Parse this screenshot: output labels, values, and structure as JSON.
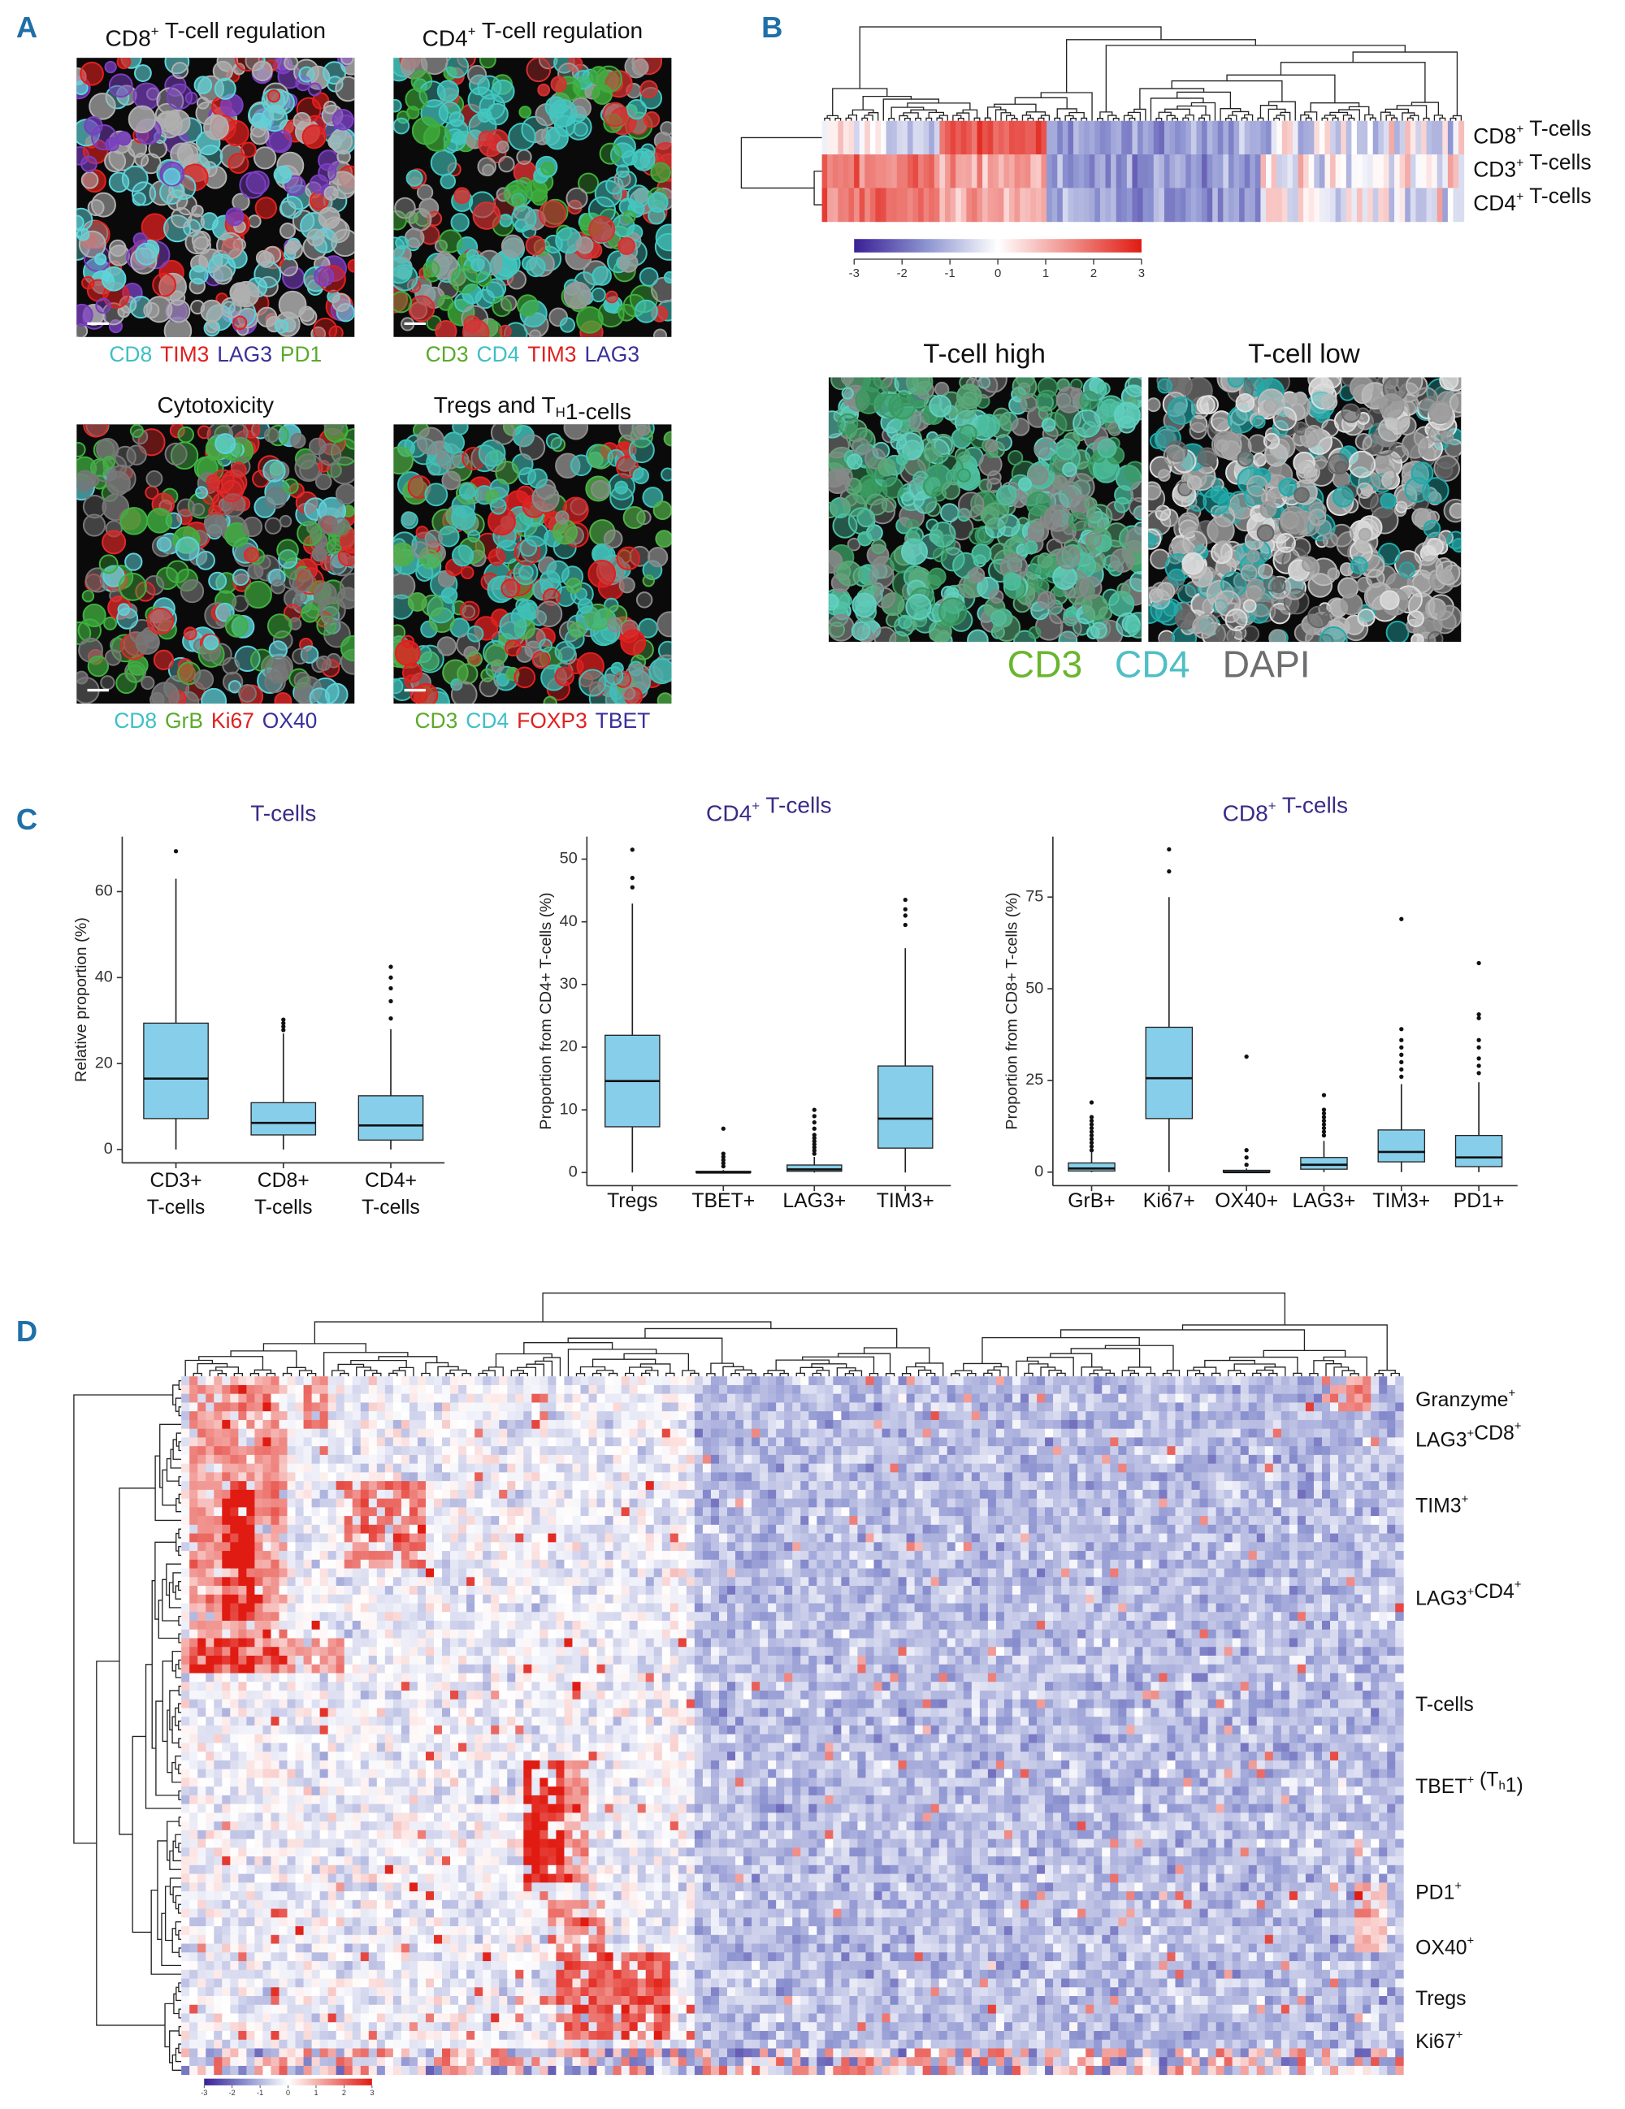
{
  "panel_a": {
    "label": "A",
    "images": [
      {
        "title": [
          "CD8",
          {
            "sup": "+"
          },
          " T-cell regulation"
        ],
        "markers": [
          {
            "text": "CD8",
            "color": "#3fbfc6"
          },
          {
            "text": "TIM3",
            "color": "#e0201e"
          },
          {
            "text": "LAG3",
            "color": "#3a2f9a"
          },
          {
            "text": "PD1",
            "color": "#5aaa2a"
          }
        ]
      },
      {
        "title": [
          "CD4",
          {
            "sup": "+"
          },
          " T-cell regulation"
        ],
        "markers": [
          {
            "text": "CD3",
            "color": "#5aaa2a"
          },
          {
            "text": "CD4",
            "color": "#3fbfc6"
          },
          {
            "text": "TIM3",
            "color": "#e0201e"
          },
          {
            "text": "LAG3",
            "color": "#3a2f9a"
          }
        ]
      },
      {
        "title": [
          "Cytotoxicity"
        ],
        "markers": [
          {
            "text": "CD8",
            "color": "#3fbfc6"
          },
          {
            "text": "GrB",
            "color": "#5aaa2a"
          },
          {
            "text": "Ki67",
            "color": "#e0201e"
          },
          {
            "text": "OX40",
            "color": "#3a2f9a"
          }
        ]
      },
      {
        "title": [
          "Tregs and T",
          {
            "sub": "H"
          },
          "1-cells"
        ],
        "markers": [
          {
            "text": "CD3",
            "color": "#5aaa2a"
          },
          {
            "text": "CD4",
            "color": "#3fbfc6"
          },
          {
            "text": "FOXP3",
            "color": "#e0201e"
          },
          {
            "text": "TBET",
            "color": "#3a2f9a"
          }
        ]
      }
    ]
  },
  "panel_b": {
    "label": "B",
    "heatmap_rows": [
      [
        "CD8",
        {
          "sup": "+"
        },
        " T-cells"
      ],
      [
        "CD3",
        {
          "sup": "+"
        },
        " T-cells"
      ],
      [
        "CD4",
        {
          "sup": "+"
        },
        " T-cells"
      ]
    ],
    "scale_ticks": [
      -3,
      -2,
      -1,
      0,
      1,
      2,
      3
    ],
    "images": [
      {
        "title": "T-cell high"
      },
      {
        "title": "T-cell low"
      }
    ],
    "legend": [
      {
        "text": "CD3",
        "color": "#6ab52e"
      },
      {
        "text": "CD4",
        "color": "#4fbfc4"
      },
      {
        "text": "DAPI",
        "color": "#6d6e70"
      }
    ]
  },
  "panel_c_label": "C",
  "chart_data": [
    {
      "type": "boxplot",
      "title": [
        "T-cells"
      ],
      "y_label": "Relative proportion (%)",
      "categories": [
        [
          "CD3+",
          "T-cells"
        ],
        [
          "CD8+",
          "T-cells"
        ],
        [
          "CD4+",
          "T-cells"
        ]
      ],
      "color": "#87ceeb",
      "ylim": [
        -3.1,
        72.8
      ],
      "yticks": [
        0,
        20,
        40,
        60
      ],
      "boxes": [
        {
          "min": 0,
          "q1": 7.2,
          "median": 16.5,
          "q3": 29.4,
          "max": 63,
          "outliers": [
            69.4
          ]
        },
        {
          "min": 0,
          "q1": 3.4,
          "median": 6.2,
          "q3": 10.9,
          "max": 27,
          "outliers": [
            27.8,
            28.6,
            29.4,
            30.2
          ]
        },
        {
          "min": 0,
          "q1": 2.2,
          "median": 5.6,
          "q3": 12.5,
          "max": 28,
          "outliers": [
            30.5,
            34.5,
            37.5,
            40,
            42.5
          ]
        }
      ]
    },
    {
      "type": "boxplot",
      "title": [
        "CD4",
        {
          "sup": "+"
        },
        " T-cells"
      ],
      "y_label": "Proportion from CD4+ T-cells (%)",
      "categories": [
        "Tregs",
        "TBET+",
        "LAG3+",
        "TIM3+"
      ],
      "color": "#87ceeb",
      "ylim": [
        -2.1,
        53.6
      ],
      "yticks": [
        0,
        10,
        20,
        30,
        40,
        50
      ],
      "boxes": [
        {
          "min": 0,
          "q1": 7.3,
          "median": 14.6,
          "q3": 21.9,
          "max": 42.9,
          "outliers": [
            45.5,
            47,
            51.5
          ]
        },
        {
          "min": 0,
          "q1": 0,
          "median": 0,
          "q3": 0.2,
          "max": 0.4,
          "outliers": [
            1,
            1.5,
            2,
            2.5,
            3,
            7
          ]
        },
        {
          "min": 0,
          "q1": 0.2,
          "median": 0.5,
          "q3": 1.2,
          "max": 2.5,
          "outliers": [
            3,
            3.5,
            4,
            4.5,
            5,
            5.5,
            6,
            7,
            8,
            9,
            10
          ]
        },
        {
          "min": 0,
          "q1": 3.9,
          "median": 8.6,
          "q3": 17,
          "max": 35.8,
          "outliers": [
            39.5,
            41,
            42,
            43.5
          ]
        }
      ]
    },
    {
      "type": "boxplot",
      "title": [
        "CD8",
        {
          "sup": "+"
        },
        " T-cells"
      ],
      "y_label": "Proportion from CD8+ T-cells (%)",
      "categories": [
        "GrB+",
        "Ki67+",
        "OX40+",
        "LAG3+",
        "TIM3+",
        "PD1+"
      ],
      "color": "#87ceeb",
      "ylim": [
        -3.7,
        91.5
      ],
      "yticks": [
        0,
        25,
        50,
        75
      ],
      "boxes": [
        {
          "min": 0,
          "q1": 0.3,
          "median": 1,
          "q3": 2.5,
          "max": 5.5,
          "outliers": [
            6,
            7,
            8,
            9,
            10,
            11,
            12,
            13,
            14,
            15,
            19
          ]
        },
        {
          "min": 0,
          "q1": 14.6,
          "median": 25.6,
          "q3": 39.5,
          "max": 75,
          "outliers": [
            82,
            88
          ]
        },
        {
          "min": 0,
          "q1": 0,
          "median": 0,
          "q3": 0.5,
          "max": 1,
          "outliers": [
            2,
            4,
            6,
            31.5
          ]
        },
        {
          "min": 0,
          "q1": 0.8,
          "median": 2,
          "q3": 4,
          "max": 8.5,
          "outliers": [
            10,
            11,
            12,
            13,
            14,
            15,
            16,
            17,
            21
          ]
        },
        {
          "min": 0,
          "q1": 2.8,
          "median": 5.5,
          "q3": 11.5,
          "max": 24,
          "outliers": [
            26,
            28,
            30,
            32,
            34,
            36,
            39,
            69
          ]
        },
        {
          "min": 0,
          "q1": 1.5,
          "median": 4,
          "q3": 10,
          "max": 24.5,
          "outliers": [
            27,
            29,
            31,
            34,
            36,
            42,
            43,
            57
          ]
        }
      ]
    }
  ],
  "panel_d": {
    "label": "D",
    "rows": [
      [
        "Granzyme",
        {
          "sup": "+"
        }
      ],
      [
        "LAG3",
        {
          "sup": "+"
        },
        "CD8",
        {
          "sup": "+"
        }
      ],
      [
        "TIM3",
        {
          "sup": "+"
        }
      ],
      [
        "LAG3",
        {
          "sup": "+"
        },
        "CD4",
        {
          "sup": "+"
        }
      ],
      [
        "T-cells"
      ],
      [
        "TBET",
        {
          "sup": "+"
        },
        " (T",
        {
          "sub": "h"
        },
        "1)"
      ],
      [
        "PD1",
        {
          "sup": "+"
        }
      ],
      [
        "OX40",
        {
          "sup": "+"
        }
      ],
      [
        "Tregs"
      ],
      [
        "Ki67",
        {
          "sup": "+"
        }
      ]
    ],
    "scale_ticks": [
      -3,
      -2,
      -1,
      0,
      1,
      2,
      3
    ]
  }
}
